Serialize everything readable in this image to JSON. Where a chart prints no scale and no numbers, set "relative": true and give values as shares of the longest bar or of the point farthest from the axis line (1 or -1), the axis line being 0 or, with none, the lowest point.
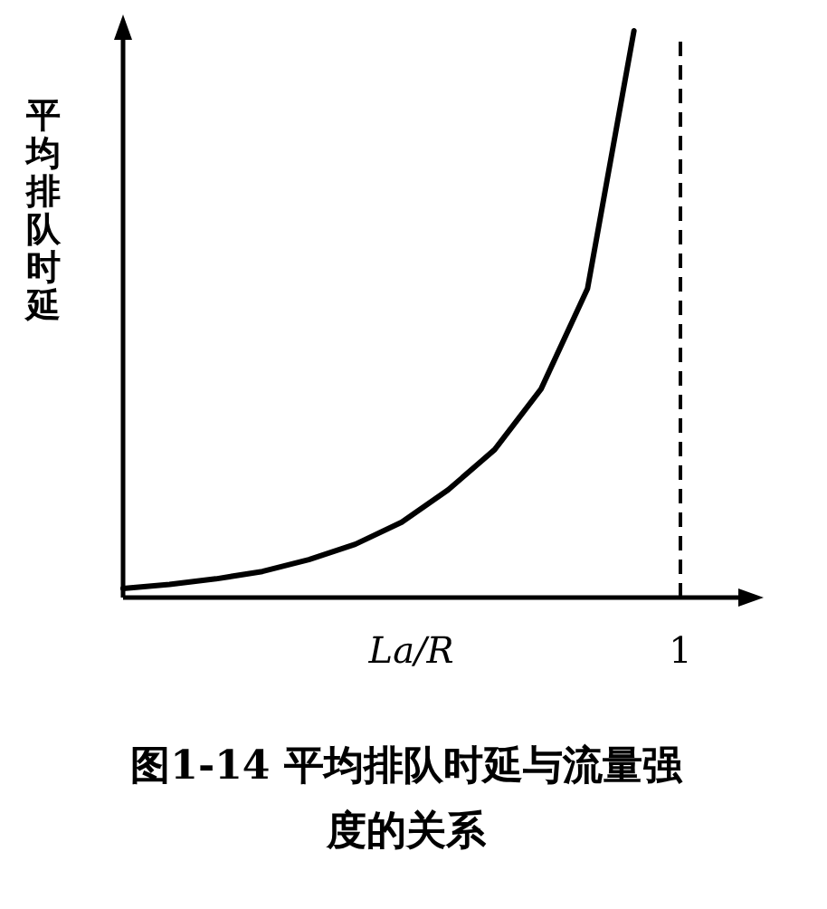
{
  "chart_data": {
    "type": "line",
    "title": "图1-14 平均排队时延与流量强度的关系",
    "xlabel": "La/R",
    "ylabel": "平均排队时延",
    "relative": true,
    "categories": [
      null,
      null,
      null,
      null,
      null,
      null,
      null,
      null,
      null,
      null,
      null,
      null,
      null
    ],
    "series": [
      {
        "color": "#000000",
        "values": [
          0.016,
          0.023,
          0.033,
          0.046,
          0.067,
          0.094,
          0.133,
          0.19,
          0.261,
          0.368,
          0.545,
          1,
          null
        ]
      }
    ],
    "ref_lines": [
      {
        "axis": "x",
        "label": "1",
        "line_style": "dashed",
        "color": "#000000"
      }
    ]
  }
}
